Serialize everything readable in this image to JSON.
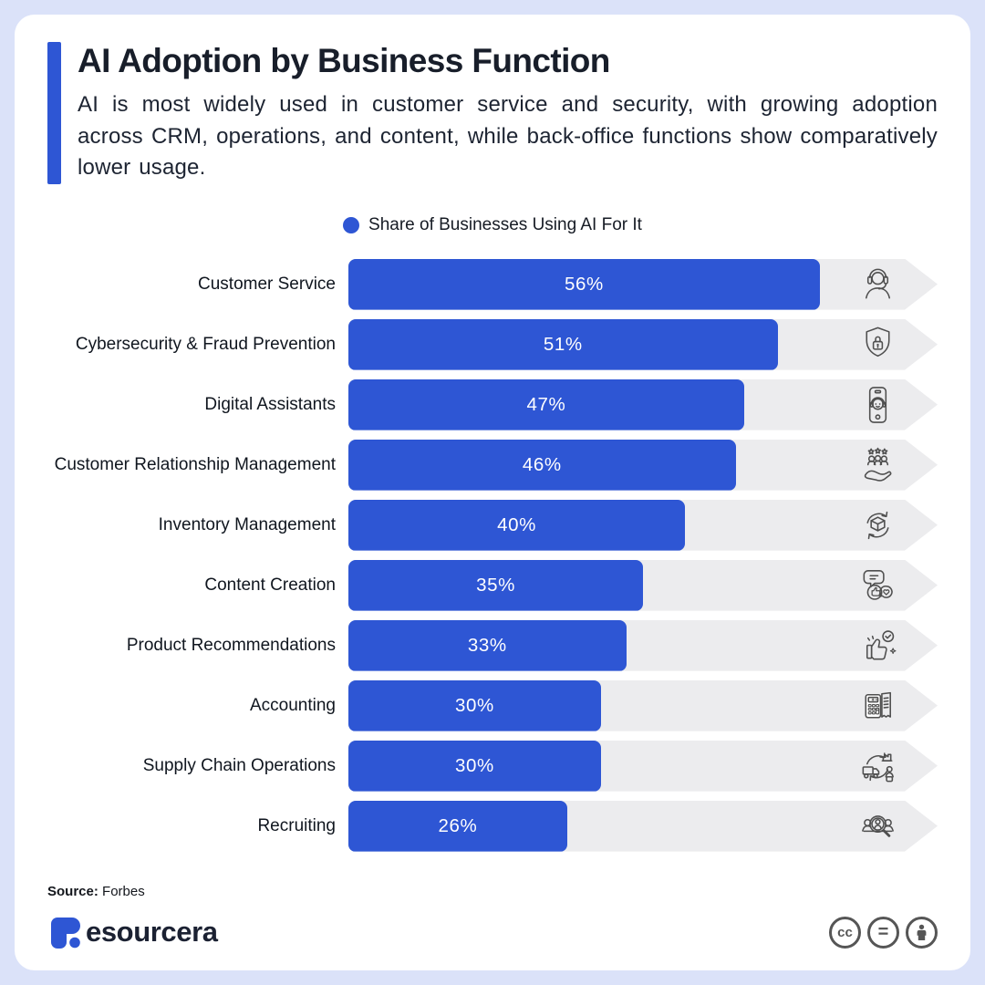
{
  "page": {
    "frame_color": "#dbe2f9",
    "card_color": "#ffffff"
  },
  "header": {
    "title": "AI Adoption by Business Function",
    "subtitle": "AI is most widely used in customer service and security, with growing adoption across CRM, operations, and content, while back-office functions show comparatively lower usage.",
    "accent_color": "#2e56d4"
  },
  "legend": {
    "label": "Share of Businesses Using AI For It",
    "dot_color": "#2e56d4"
  },
  "chart_data": {
    "type": "bar",
    "orientation": "horizontal",
    "title": "AI Adoption by Business Function",
    "legend_entries": [
      "Share of Businesses Using AI For It"
    ],
    "unit": "%",
    "scale_max": 70,
    "bar_color": "#2e56d4",
    "track_color": "#ececee",
    "icon_color": "#4f4f4f",
    "categories": [
      "Customer Service",
      "Cybersecurity & Fraud Prevention",
      "Digital Assistants",
      "Customer Relationship Management",
      "Inventory Management",
      "Content Creation",
      "Product Recommendations",
      "Accounting",
      "Supply Chain Operations",
      "Recruiting"
    ],
    "values": [
      56,
      51,
      47,
      46,
      40,
      35,
      33,
      30,
      30,
      26
    ],
    "rows": [
      {
        "label": "Customer Service",
        "value": 56,
        "display": "56%",
        "icon": "customer-service"
      },
      {
        "label": "Cybersecurity & Fraud Prevention",
        "value": 51,
        "display": "51%",
        "icon": "shield-lock"
      },
      {
        "label": "Digital Assistants",
        "value": 47,
        "display": "47%",
        "icon": "phone-assistant"
      },
      {
        "label": "Customer Relationship Management",
        "value": 46,
        "display": "46%",
        "icon": "hand-customers"
      },
      {
        "label": "Inventory Management",
        "value": 40,
        "display": "40%",
        "icon": "inventory-cycle"
      },
      {
        "label": "Content Creation",
        "value": 35,
        "display": "35%",
        "icon": "content-bubbles"
      },
      {
        "label": "Product Recommendations",
        "value": 33,
        "display": "33%",
        "icon": "thumbs-up-check"
      },
      {
        "label": "Accounting",
        "value": 30,
        "display": "30%",
        "icon": "calculator-receipt"
      },
      {
        "label": "Supply Chain Operations",
        "value": 30,
        "display": "30%",
        "icon": "truck-cycle"
      },
      {
        "label": "Recruiting",
        "value": 26,
        "display": "26%",
        "icon": "people-search"
      }
    ]
  },
  "footer": {
    "source_label": "Source:",
    "source_value": "Forbes",
    "brand_text": "esourcera",
    "cc_label": "cc",
    "equals_label": "=",
    "license_badges": [
      "cc",
      "equals",
      "person"
    ]
  }
}
